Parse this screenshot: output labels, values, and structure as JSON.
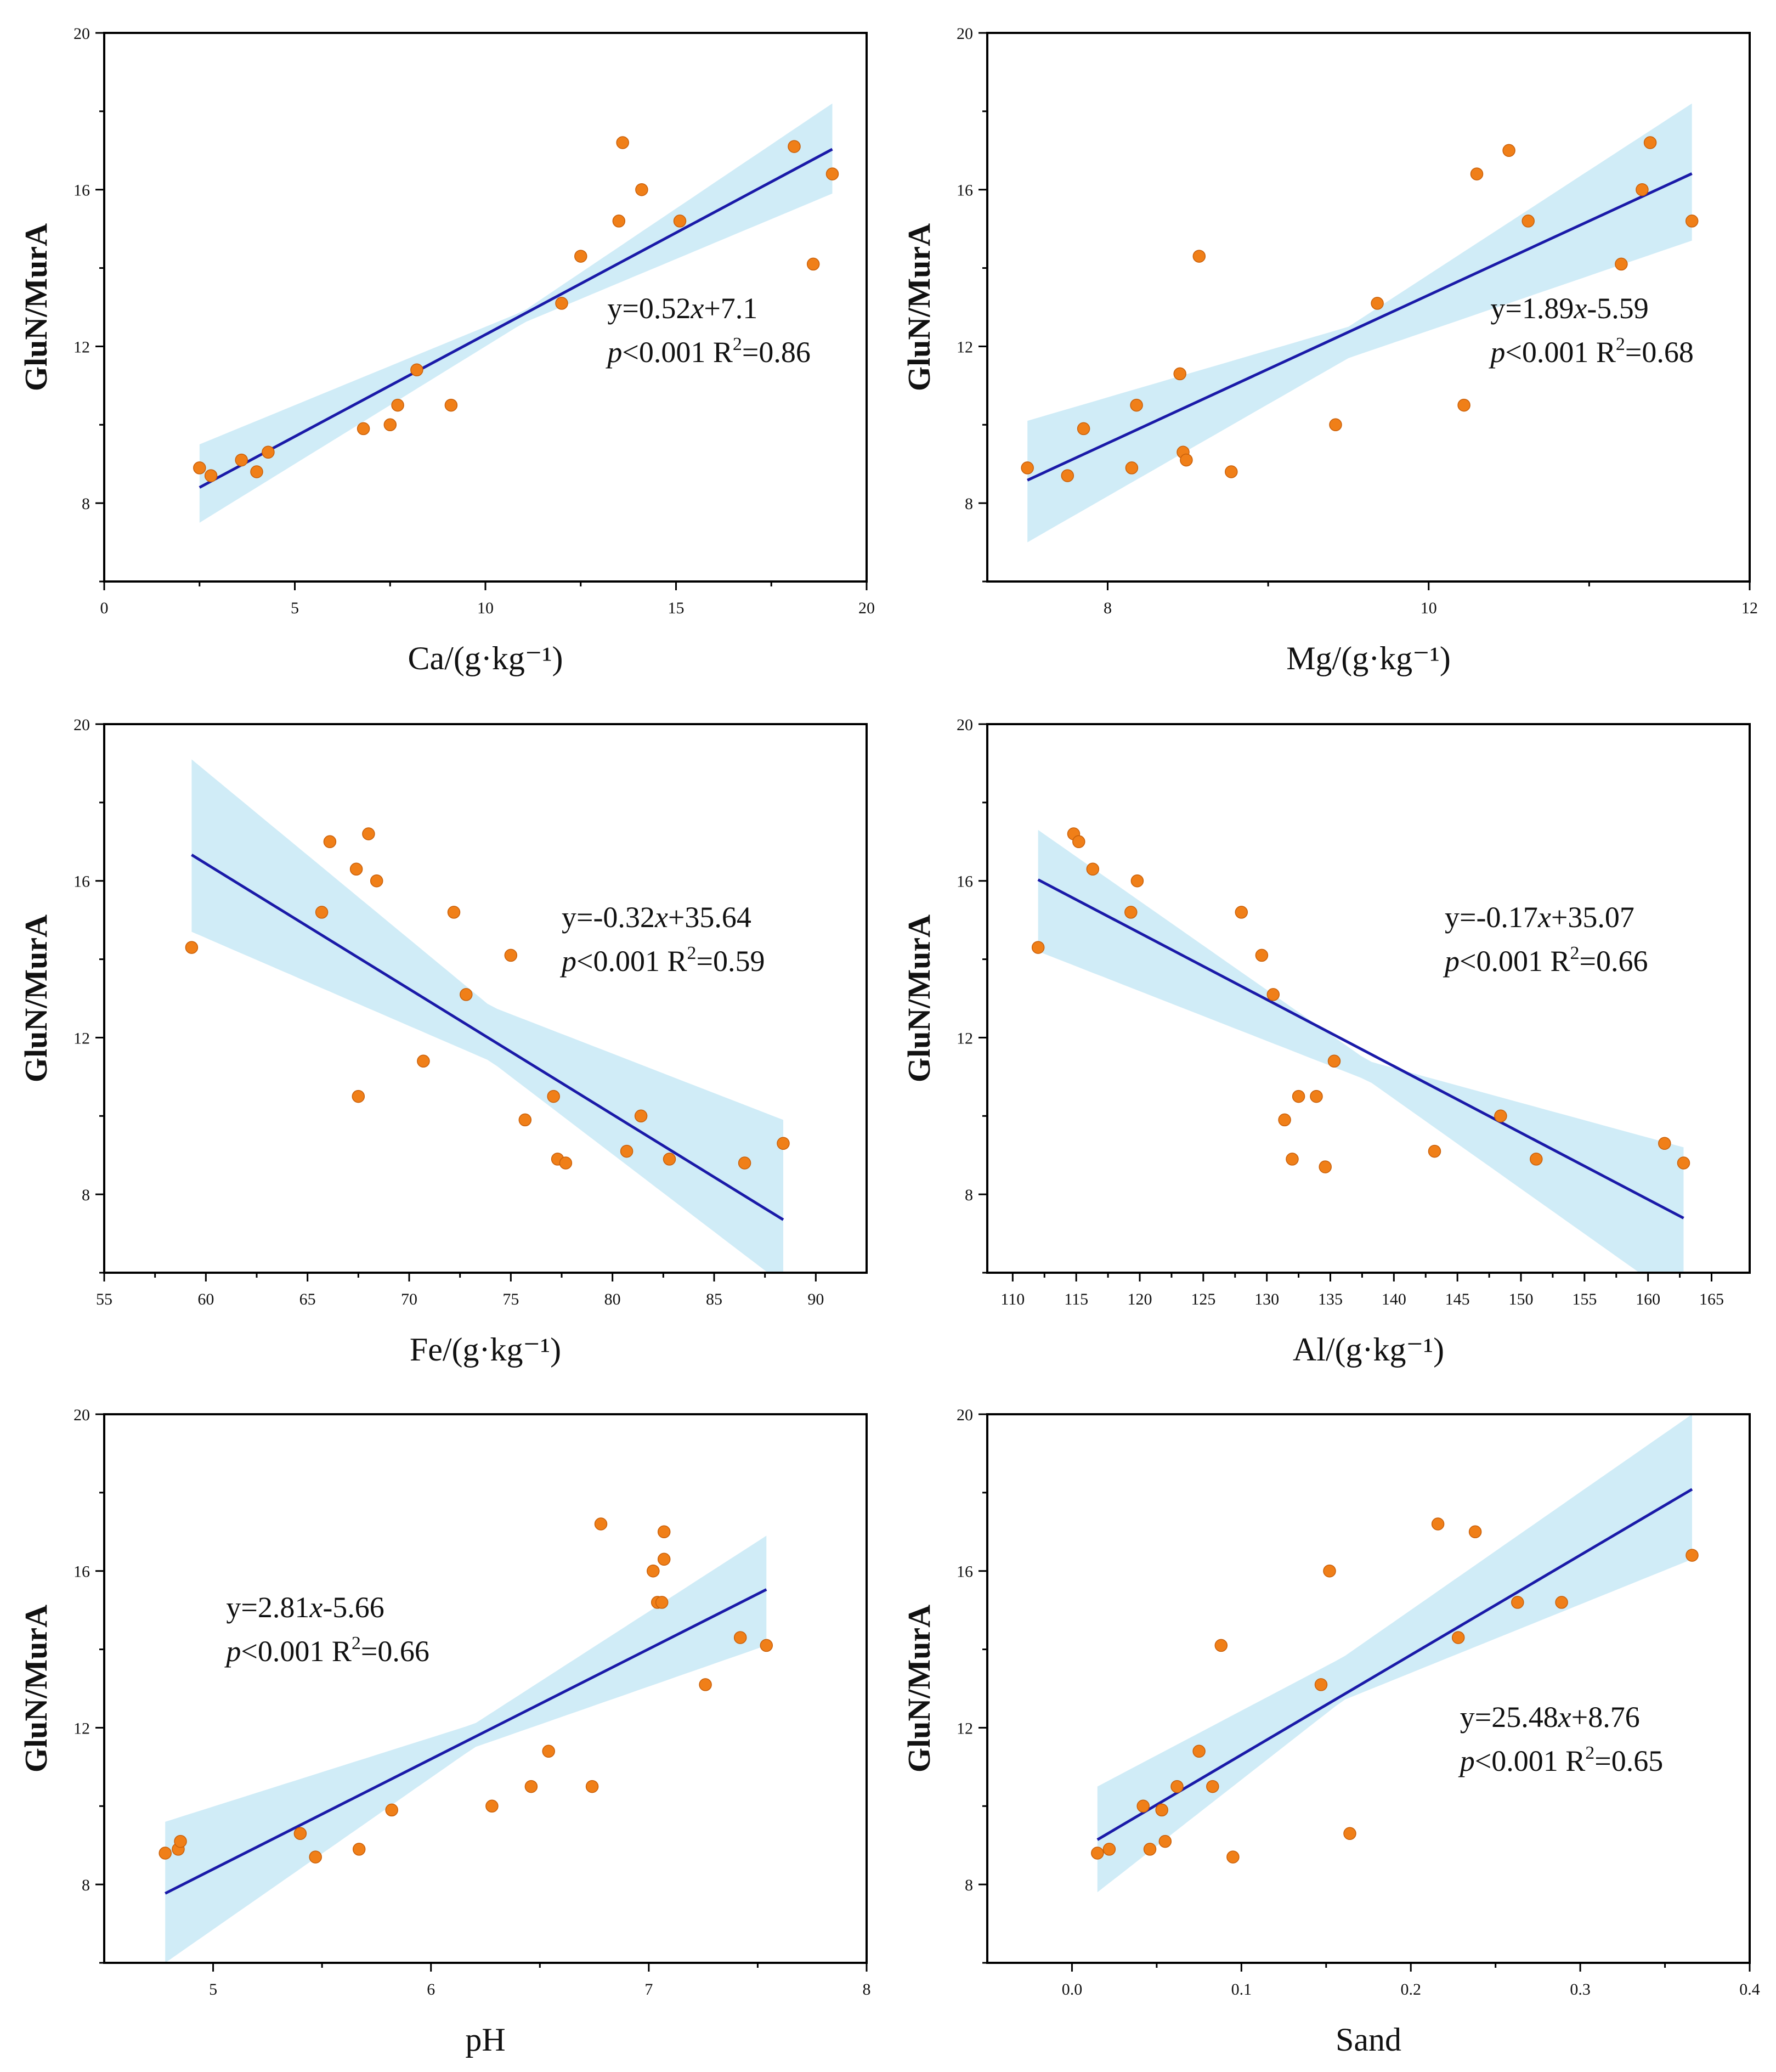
{
  "chart_data": [
    {
      "type": "scatter",
      "id": "ca",
      "title": "",
      "xlabel": "Ca/(g·kg⁻¹)",
      "ylabel": "GluN/MurA",
      "xlim": [
        0,
        20
      ],
      "ylim": [
        6,
        20
      ],
      "xticks": [
        0,
        5,
        10,
        15,
        20
      ],
      "xtick_labels": [
        "0",
        "5",
        "10",
        "15",
        "20"
      ],
      "yticks": [
        8,
        12,
        16,
        20
      ],
      "ytick_labels": [
        "8",
        "12",
        "16",
        "20"
      ],
      "x": [
        2.5,
        2.8,
        3.6,
        4.0,
        4.3,
        6.8,
        7.5,
        7.7,
        8.2,
        9.1,
        12.0,
        12.5,
        13.5,
        13.6,
        14.1,
        15.1,
        18.1,
        18.6,
        19.1
      ],
      "y": [
        8.9,
        8.7,
        9.1,
        8.8,
        9.3,
        9.9,
        10.0,
        10.5,
        11.4,
        10.5,
        13.1,
        14.3,
        15.2,
        17.2,
        16.0,
        15.2,
        17.1,
        14.1,
        16.4
      ],
      "fit": {
        "slope": 0.52,
        "intercept": 7.1,
        "x_range": [
          2.5,
          19.1
        ]
      },
      "ci_band": {
        "x": [
          2.5,
          11.0,
          19.1
        ],
        "upper": [
          9.5,
          12.9,
          18.2
        ],
        "lower": [
          7.5,
          12.6,
          15.9
        ]
      },
      "equation": "y=0.52x+7.1",
      "stats": "p<0.001 R2=0.86",
      "annotation_pos": "right-middle"
    },
    {
      "type": "scatter",
      "id": "mg",
      "title": "",
      "xlabel": "Mg/(g·kg⁻¹)",
      "ylabel": "GluN/MurA",
      "xlim": [
        7.25,
        12
      ],
      "ylim": [
        6,
        20
      ],
      "xticks": [
        8,
        10,
        12
      ],
      "xtick_labels": [
        "8",
        "10",
        "12"
      ],
      "yticks": [
        8,
        12,
        16,
        20
      ],
      "ytick_labels": [
        "8",
        "12",
        "16",
        "20"
      ],
      "x": [
        7.5,
        7.75,
        7.85,
        8.15,
        8.18,
        8.45,
        8.47,
        8.49,
        8.57,
        8.77,
        9.42,
        9.68,
        10.22,
        10.3,
        10.5,
        10.62,
        11.2,
        11.33,
        11.38,
        11.64
      ],
      "y": [
        8.9,
        8.7,
        9.9,
        8.9,
        10.5,
        11.3,
        9.3,
        9.1,
        14.3,
        8.8,
        10.0,
        13.1,
        10.5,
        16.4,
        17.0,
        15.2,
        14.1,
        16.0,
        17.2,
        15.2
      ],
      "fit": {
        "slope": 1.89,
        "intercept": -5.59,
        "x_range": [
          7.5,
          11.64
        ]
      },
      "ci_band": {
        "x": [
          7.5,
          9.5,
          11.64
        ],
        "upper": [
          10.1,
          12.5,
          18.2
        ],
        "lower": [
          7.0,
          11.7,
          14.7
        ]
      },
      "equation": "y=1.89x-5.59",
      "stats": "p<0.001 R2=0.68",
      "annotation_pos": "right-middle"
    },
    {
      "type": "scatter",
      "id": "fe",
      "title": "",
      "xlabel": "Fe/(g·kg⁻¹)",
      "ylabel": "GluN/MurA",
      "xlim": [
        55,
        92.5
      ],
      "ylim": [
        6,
        20
      ],
      "xticks": [
        55,
        60,
        65,
        70,
        75,
        80,
        85,
        90
      ],
      "xtick_labels": [
        "55",
        "60",
        "65",
        "70",
        "75",
        "80",
        "85",
        "90"
      ],
      "yticks": [
        8,
        12,
        16,
        20
      ],
      "ytick_labels": [
        "8",
        "12",
        "16",
        "20"
      ],
      "x": [
        59.3,
        65.7,
        66.1,
        67.4,
        67.5,
        68.0,
        68.4,
        70.7,
        72.2,
        72.8,
        75.0,
        75.7,
        77.1,
        77.3,
        77.7,
        80.7,
        81.4,
        82.8,
        86.5,
        88.4
      ],
      "y": [
        14.3,
        15.2,
        17.0,
        16.3,
        10.5,
        17.2,
        16.0,
        11.4,
        15.2,
        13.1,
        14.1,
        9.9,
        10.5,
        8.9,
        8.8,
        9.1,
        10.0,
        8.9,
        8.8,
        9.3
      ],
      "fit": {
        "slope": -0.32,
        "intercept": 35.64,
        "x_range": [
          59.3,
          88.4
        ]
      },
      "ci_band": {
        "x": [
          59.3,
          74.0,
          88.4
        ],
        "upper": [
          19.1,
          12.8,
          9.9
        ],
        "lower": [
          14.7,
          11.4,
          5.7
        ]
      },
      "equation": "y=-0.32x+35.64",
      "stats": "p<0.001 R2=0.59",
      "annotation_pos": "right-upper"
    },
    {
      "type": "scatter",
      "id": "al",
      "title": "",
      "xlabel": "Al/(g·kg⁻¹)",
      "ylabel": "GluN/MurA",
      "xlim": [
        108,
        168
      ],
      "ylim": [
        6,
        20
      ],
      "xticks": [
        110,
        115,
        120,
        125,
        130,
        135,
        140,
        145,
        150,
        155,
        160,
        165
      ],
      "xtick_labels": [
        "110",
        "115",
        "120",
        "125",
        "130",
        "135",
        "140",
        "145",
        "150",
        "155",
        "160",
        "165"
      ],
      "yticks": [
        8,
        12,
        16,
        20
      ],
      "ytick_labels": [
        "8",
        "12",
        "16",
        "20"
      ],
      "x": [
        112.0,
        114.8,
        115.2,
        116.3,
        119.3,
        119.8,
        128.0,
        129.6,
        130.5,
        131.4,
        132.0,
        132.5,
        133.9,
        134.6,
        135.3,
        143.2,
        148.4,
        151.2,
        161.3,
        162.8
      ],
      "y": [
        14.3,
        17.2,
        17.0,
        16.3,
        15.2,
        16.0,
        15.2,
        14.1,
        13.1,
        9.9,
        8.9,
        10.5,
        10.5,
        8.7,
        11.4,
        9.1,
        10.0,
        8.9,
        9.3,
        8.8
      ],
      "fit": {
        "slope": -0.17,
        "intercept": 35.07,
        "x_range": [
          112.0,
          162.8
        ]
      },
      "ci_band": {
        "x": [
          112.0,
          138.0,
          162.8
        ],
        "upper": [
          17.3,
          11.4,
          9.2
        ],
        "lower": [
          14.2,
          10.9,
          5.2
        ]
      },
      "equation": "y=-0.17x+35.07",
      "stats": "p<0.001 R2=0.66",
      "annotation_pos": "right-upper"
    },
    {
      "type": "scatter",
      "id": "ph",
      "title": "",
      "xlabel": "pH",
      "ylabel": "GluN/MurA",
      "xlim": [
        4.5,
        8
      ],
      "ylim": [
        6,
        20
      ],
      "xticks": [
        5,
        6,
        7,
        8
      ],
      "xtick_labels": [
        "5",
        "6",
        "7",
        "8"
      ],
      "yticks": [
        8,
        12,
        16,
        20
      ],
      "ytick_labels": [
        "8",
        "12",
        "16",
        "20"
      ],
      "x": [
        4.78,
        4.84,
        4.85,
        5.4,
        5.47,
        5.67,
        5.82,
        6.28,
        6.46,
        6.54,
        6.74,
        6.78,
        7.02,
        7.04,
        7.06,
        7.07,
        7.07,
        7.26,
        7.42,
        7.54
      ],
      "y": [
        8.8,
        8.9,
        9.1,
        9.3,
        8.7,
        8.9,
        9.9,
        10.0,
        10.5,
        11.4,
        10.5,
        17.2,
        16.0,
        15.2,
        15.2,
        17.0,
        16.3,
        13.1,
        14.3,
        14.1
      ],
      "fit": {
        "slope": 2.81,
        "intercept": -5.66,
        "x_range": [
          4.78,
          7.54
        ]
      },
      "ci_band": {
        "x": [
          4.78,
          6.2,
          7.54
        ],
        "upper": [
          9.6,
          12.1,
          16.9
        ],
        "lower": [
          6.0,
          11.5,
          14.1
        ]
      },
      "equation": "y=2.81x-5.66",
      "stats": "p<0.001 R2=0.66",
      "annotation_pos": "left-upper"
    },
    {
      "type": "scatter",
      "id": "sand",
      "title": "",
      "xlabel": "Sand",
      "ylabel": "GluN/MurA",
      "xlim": [
        -0.05,
        0.4
      ],
      "ylim": [
        6,
        20
      ],
      "xticks": [
        0.0,
        0.1,
        0.2,
        0.3,
        0.4
      ],
      "xtick_labels": [
        "0.0",
        "0.1",
        "0.2",
        "0.3",
        "0.4"
      ],
      "yticks": [
        8,
        12,
        16,
        20
      ],
      "ytick_labels": [
        "8",
        "12",
        "16",
        "20"
      ],
      "x": [
        0.015,
        0.022,
        0.042,
        0.046,
        0.053,
        0.055,
        0.062,
        0.075,
        0.083,
        0.088,
        0.095,
        0.147,
        0.152,
        0.164,
        0.216,
        0.228,
        0.238,
        0.263,
        0.289,
        0.366
      ],
      "y": [
        8.8,
        8.9,
        10.0,
        8.9,
        9.9,
        9.1,
        10.5,
        11.4,
        10.5,
        14.1,
        8.7,
        13.1,
        16.0,
        9.3,
        17.2,
        14.3,
        17.0,
        15.2,
        15.2,
        16.4
      ],
      "fit": {
        "slope": 25.48,
        "intercept": 8.76,
        "x_range": [
          0.015,
          0.366
        ]
      },
      "ci_band": {
        "x": [
          0.015,
          0.16,
          0.366
        ],
        "upper": [
          10.5,
          13.8,
          20.0
        ],
        "lower": [
          7.8,
          12.7,
          16.3
        ]
      },
      "equation": "y=25.48x+8.76",
      "stats": "p<0.001 R2=0.65",
      "annotation_pos": "right-lower"
    }
  ]
}
